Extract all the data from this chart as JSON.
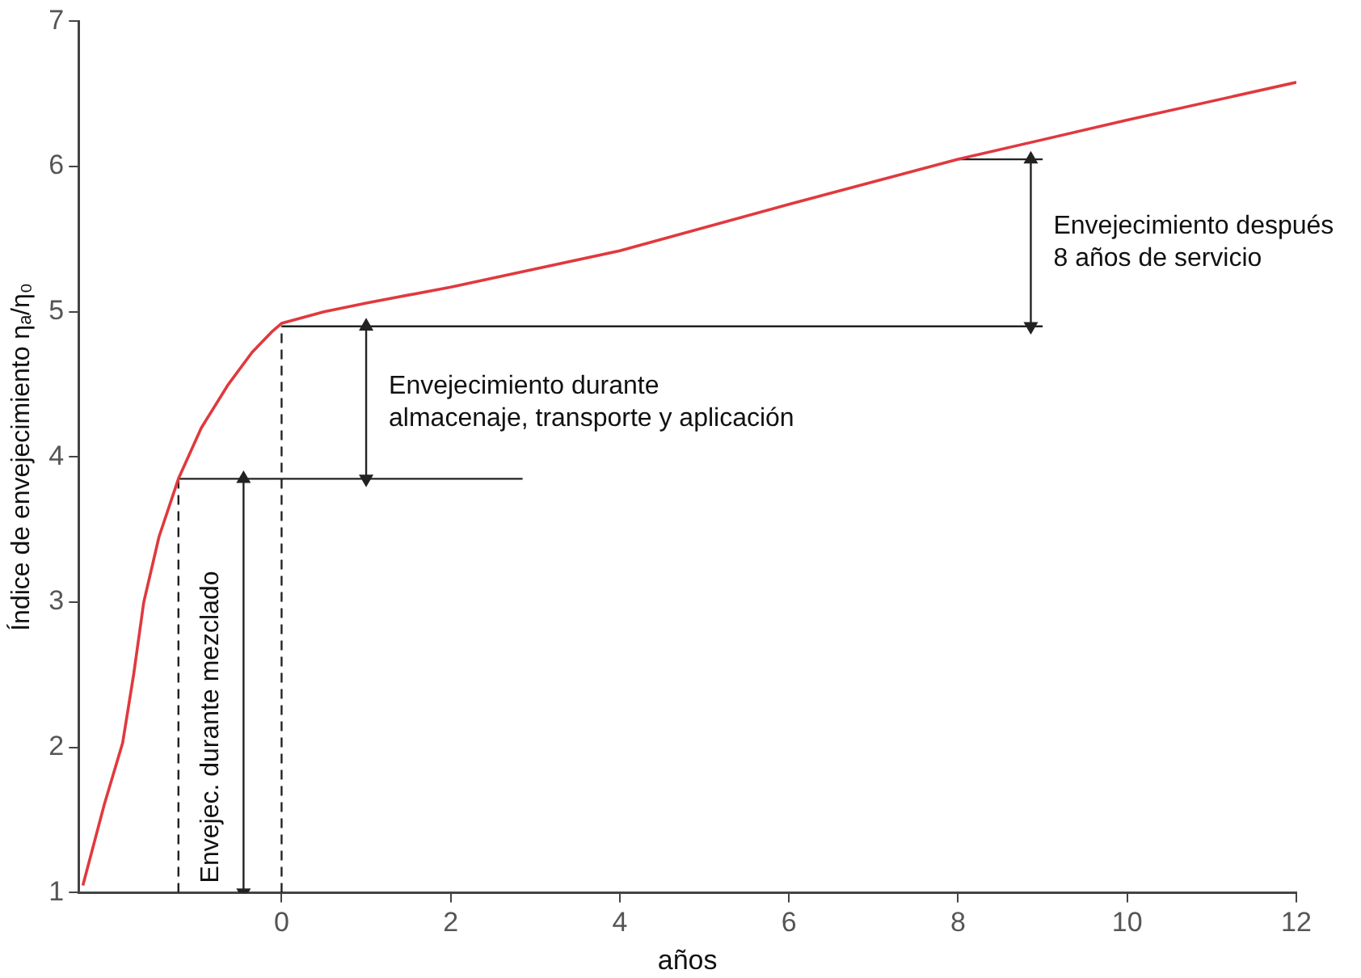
{
  "chart_data": {
    "type": "line",
    "xlabel": "años",
    "ylabel": "Índice de envejecimiento ηₐ/η₀",
    "xlim": [
      -2.4,
      12
    ],
    "xticks": [
      0,
      2,
      4,
      6,
      8,
      10,
      12
    ],
    "ylim": [
      1,
      7
    ],
    "yticks": [
      1,
      2,
      3,
      4,
      5,
      6,
      7
    ],
    "grid": false,
    "legend": false,
    "marker": "none",
    "line_style": "solid",
    "series": [
      {
        "color": "#e0393e",
        "x": [
          -2.35,
          -2.1,
          -1.88,
          -1.75,
          -1.63,
          -1.45,
          -1.22,
          -0.95,
          -0.63,
          -0.35,
          -0.12,
          0,
          0.5,
          1,
          2,
          4,
          6,
          8,
          10,
          12
        ],
        "values": [
          1.05,
          1.6,
          2.03,
          2.5,
          3,
          3.45,
          3.85,
          4.2,
          4.5,
          4.72,
          4.86,
          4.92,
          5.0,
          5.06,
          5.17,
          5.42,
          5.74,
          6.05,
          6.32,
          6.58
        ]
      },
      {
        "color": "#222222",
        "x": [
          -1.22,
          2.85
        ],
        "values": [
          3.85,
          3.85
        ]
      },
      {
        "color": "#222222",
        "x": [
          0,
          9
        ],
        "values": [
          4.9,
          4.9
        ]
      },
      {
        "color": "#222222",
        "x": [
          8,
          9
        ],
        "values": [
          6.05,
          6.05
        ]
      },
      {
        "color": "#222222",
        "line_style": "dashed",
        "x": [
          -1.22,
          -1.22
        ],
        "values": [
          1,
          3.85
        ]
      },
      {
        "color": "#222222",
        "line_style": "dashed",
        "x": [
          0,
          0
        ],
        "values": [
          1,
          4.9
        ]
      },
      {
        "color": "#222222",
        "marker": "triangle",
        "x": [
          -0.45,
          -0.45
        ],
        "values": [
          1,
          3.85
        ]
      },
      {
        "color": "#222222",
        "marker": "triangle",
        "x": [
          1,
          1
        ],
        "values": [
          3.85,
          4.9
        ]
      },
      {
        "color": "#222222",
        "marker": "triangle",
        "x": [
          8.86,
          8.86
        ],
        "values": [
          4.9,
          6.05
        ]
      }
    ],
    "annotations": [
      "Envejec. durante mezclado",
      "Envejecimiento durante\nalmacenaje, transporte y aplicación",
      "Envejecimiento después\n8 años de servicio"
    ]
  }
}
